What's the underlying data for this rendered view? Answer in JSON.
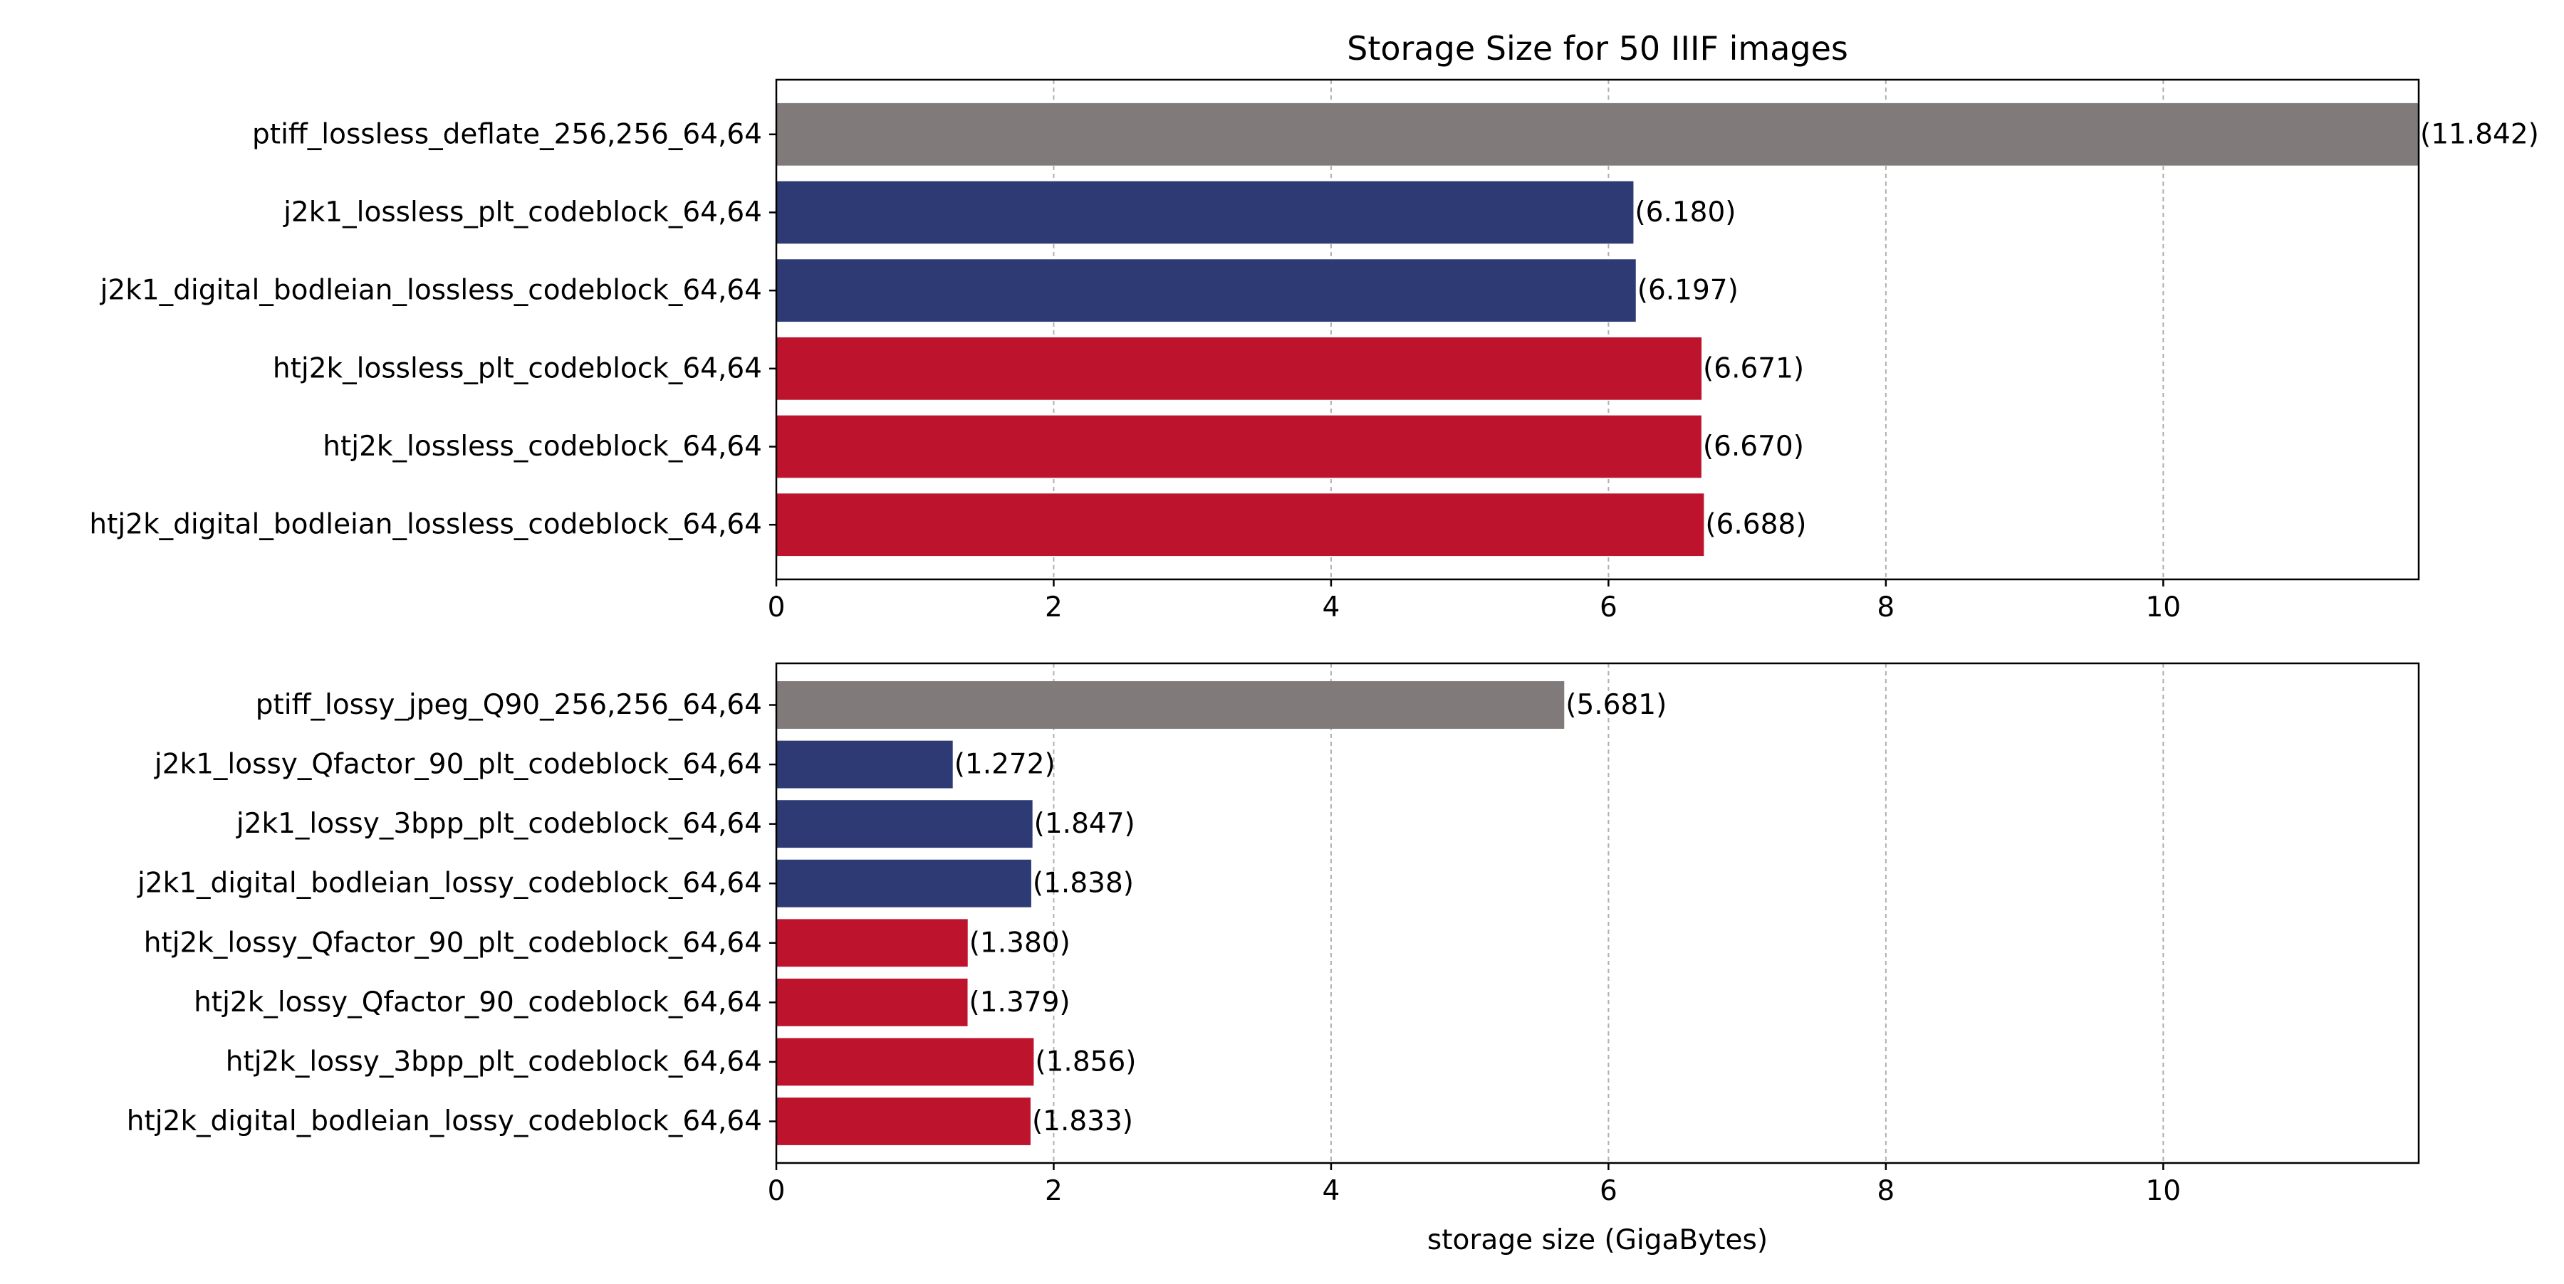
{
  "chart_data": [
    {
      "type": "bar",
      "orientation": "horizontal",
      "title": "Storage Size for 50 IIIF images",
      "xlabel": "",
      "ylabel": "",
      "xlim": [
        0,
        11.842
      ],
      "xticks": [
        0,
        2,
        4,
        6,
        8,
        10
      ],
      "grid": "x, dashed",
      "categories": [
        "ptiff_lossless_deflate_256,256_64,64",
        "j2k1_lossless_plt_codeblock_64,64",
        "j2k1_digital_bodleian_lossless_codeblock_64,64",
        "htj2k_lossless_plt_codeblock_64,64",
        "htj2k_lossless_codeblock_64,64",
        "htj2k_digital_bodleian_lossless_codeblock_64,64"
      ],
      "values": [
        11.842,
        6.18,
        6.197,
        6.671,
        6.67,
        6.688
      ],
      "value_labels": [
        "(11.842)",
        "(6.180)",
        "(6.197)",
        "(6.671)",
        "(6.670)",
        "(6.688)"
      ],
      "colors": [
        "#807b7a",
        "#2e3a74",
        "#2e3a74",
        "#be132d",
        "#be132d",
        "#be132d"
      ]
    },
    {
      "type": "bar",
      "orientation": "horizontal",
      "title": "",
      "xlabel": "storage size (GigaBytes)",
      "ylabel": "",
      "xlim": [
        0,
        11.842
      ],
      "xticks": [
        0,
        2,
        4,
        6,
        8,
        10
      ],
      "grid": "x, dashed",
      "categories": [
        "ptiff_lossy_jpeg_Q90_256,256_64,64",
        "j2k1_lossy_Qfactor_90_plt_codeblock_64,64",
        "j2k1_lossy_3bpp_plt_codeblock_64,64",
        "j2k1_digital_bodleian_lossy_codeblock_64,64",
        "htj2k_lossy_Qfactor_90_plt_codeblock_64,64",
        "htj2k_lossy_Qfactor_90_codeblock_64,64",
        "htj2k_lossy_3bpp_plt_codeblock_64,64",
        "htj2k_digital_bodleian_lossy_codeblock_64,64"
      ],
      "values": [
        5.681,
        1.272,
        1.847,
        1.838,
        1.38,
        1.379,
        1.856,
        1.833
      ],
      "value_labels": [
        "(5.681)",
        "(1.272)",
        "(1.847)",
        "(1.838)",
        "(1.380)",
        "(1.379)",
        "(1.856)",
        "(1.833)"
      ],
      "colors": [
        "#807b7a",
        "#2e3a74",
        "#2e3a74",
        "#2e3a74",
        "#be132d",
        "#be132d",
        "#be132d",
        "#be132d"
      ]
    }
  ]
}
